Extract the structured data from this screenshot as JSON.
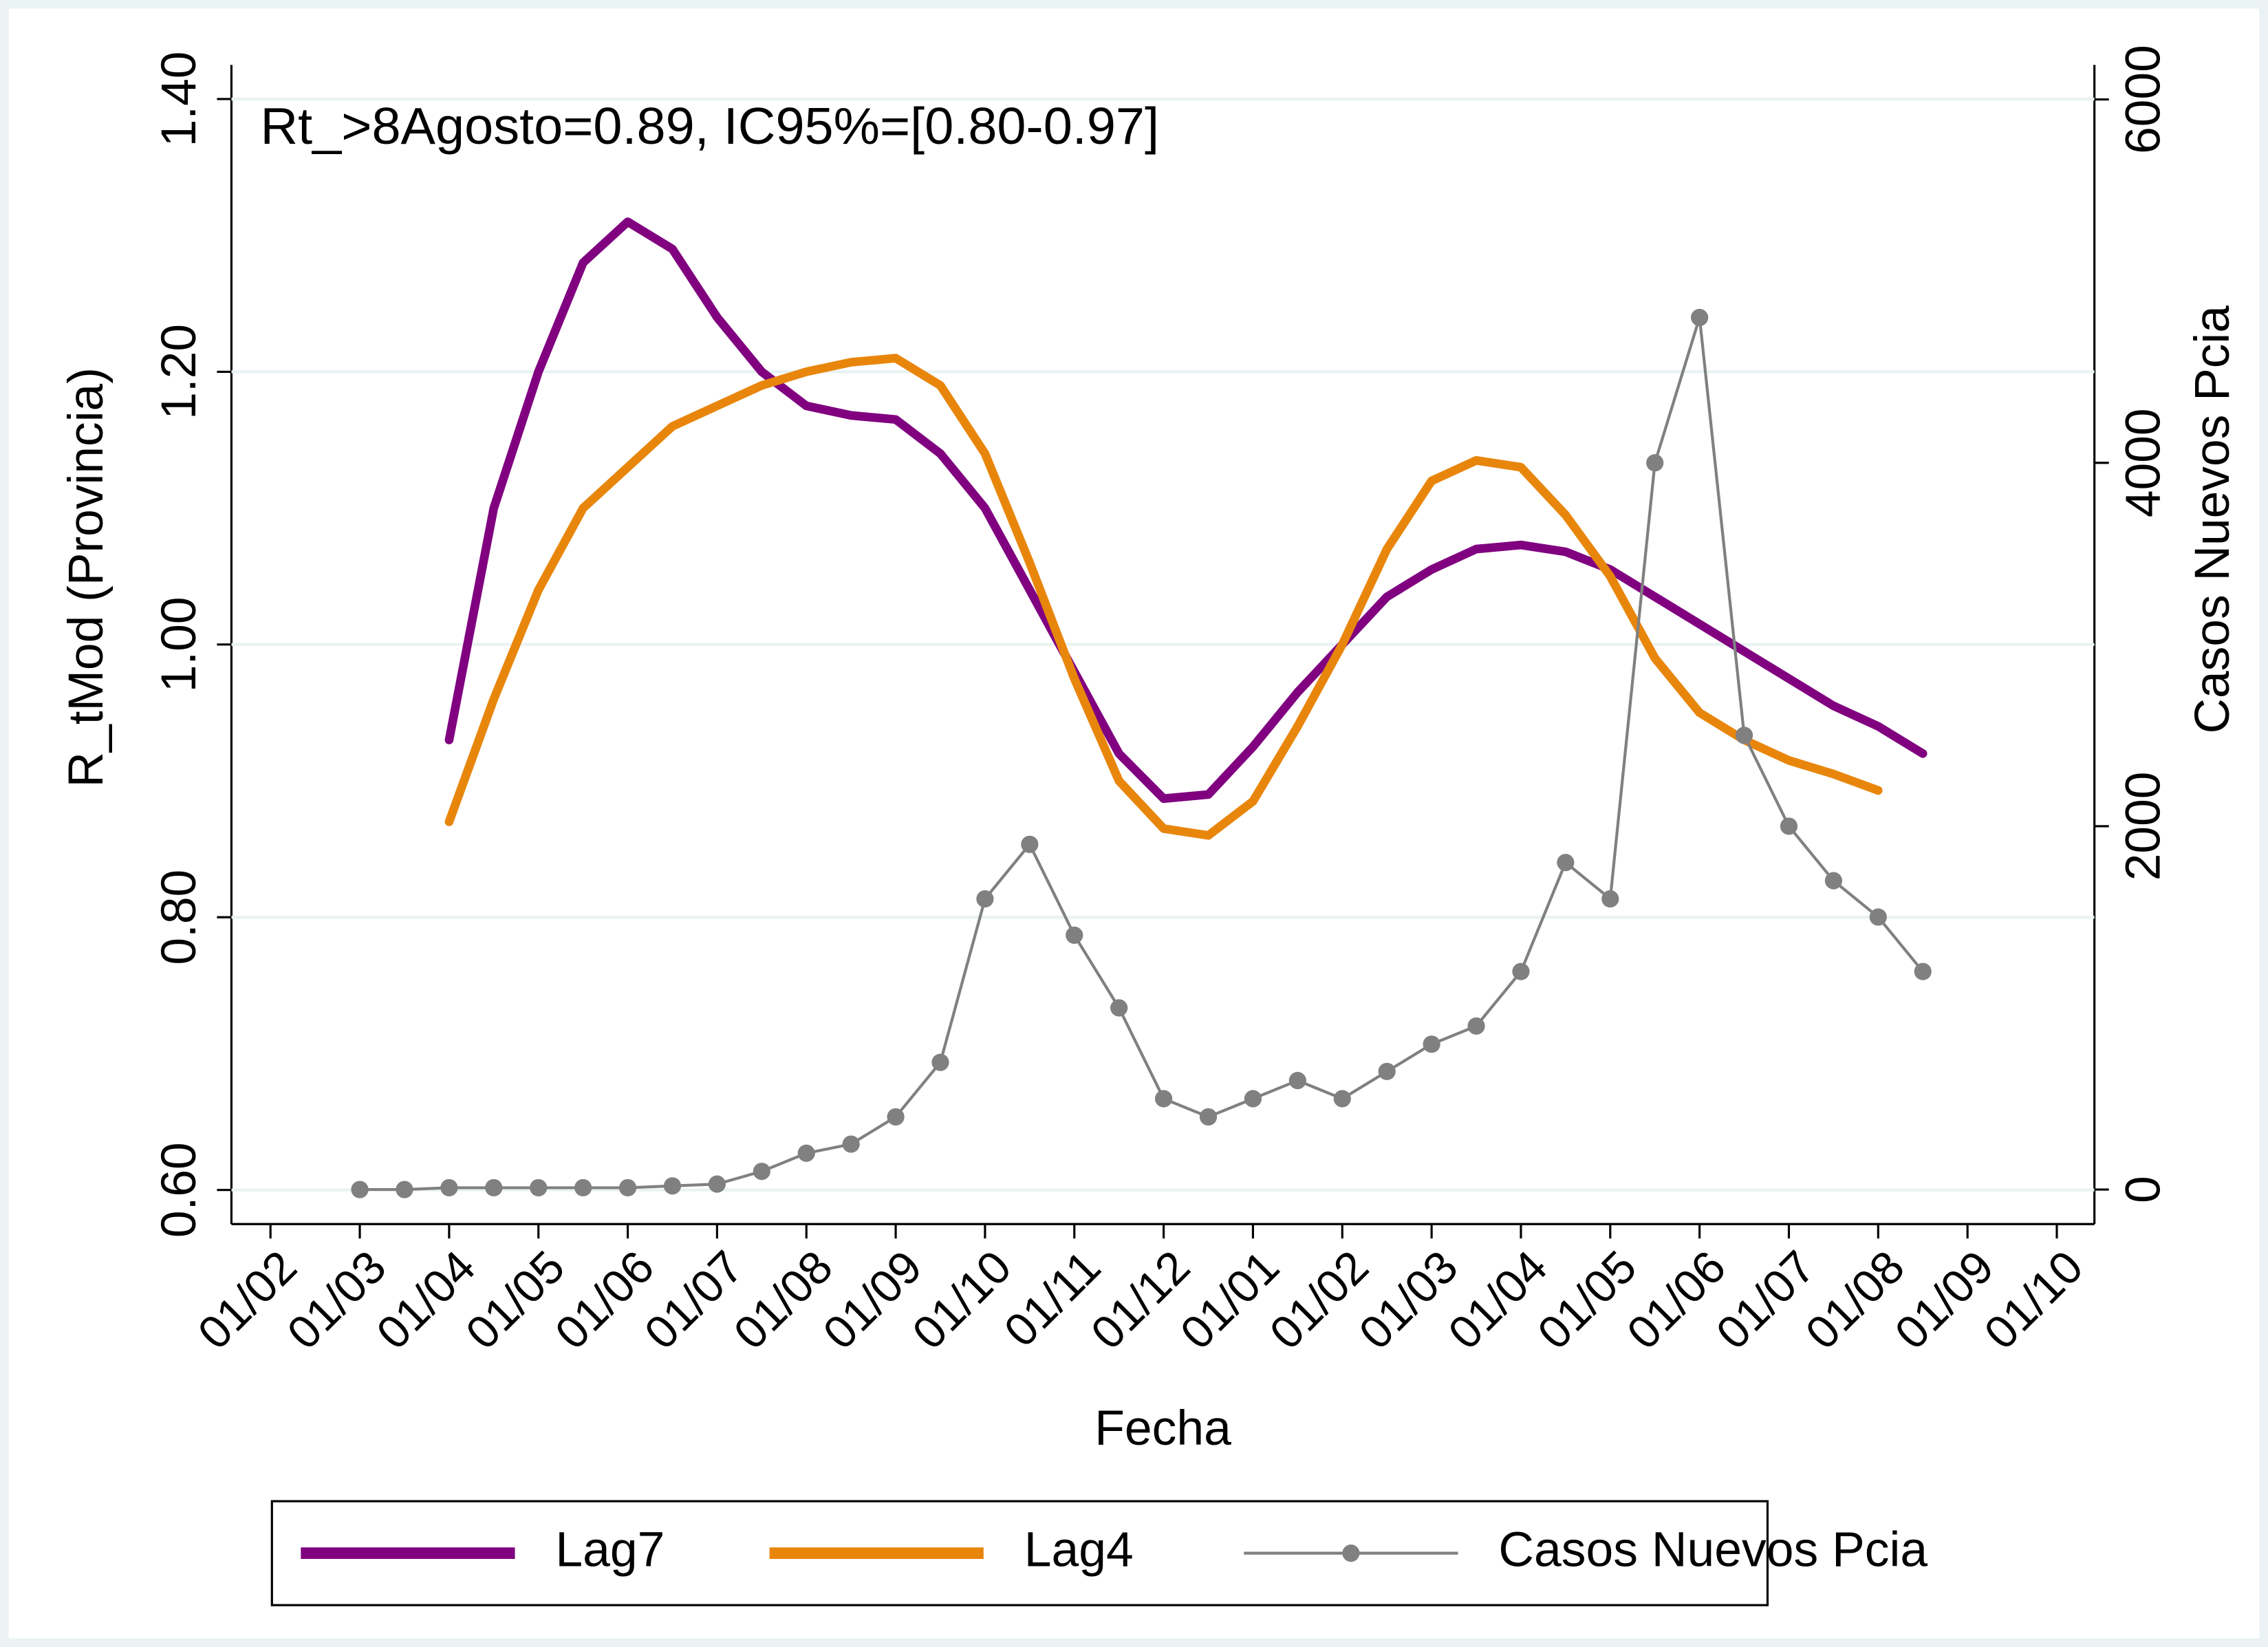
{
  "chart_data": {
    "type": "line",
    "annotation": "Rt_>8Agosto=0.89, IC95%=[0.80-0.97]",
    "x_label": "Fecha",
    "y_label": "R_tMod (Provincia)",
    "y2_label": "Casos Nuevos Pcia",
    "categories": [
      "01/02",
      null,
      "01/03",
      null,
      "01/04",
      null,
      "01/05",
      null,
      "01/06",
      null,
      "01/07",
      null,
      "01/08",
      null,
      "01/09",
      null,
      "01/10",
      null,
      "01/11",
      null,
      "01/12",
      null,
      "01/01",
      null,
      "01/02",
      null,
      "01/03",
      null,
      "01/04",
      null,
      "01/05",
      null,
      "01/06",
      null,
      "01/07",
      null,
      "01/08",
      null,
      "01/09",
      null,
      "01/10"
    ],
    "ylim": [
      0.575,
      1.425
    ],
    "yticks": [
      {
        "value": 0.6,
        "label": "0.60"
      },
      {
        "value": 0.8,
        "label": "0.80"
      },
      {
        "value": 1.0,
        "label": "1.00"
      },
      {
        "value": 1.2,
        "label": "1.20"
      },
      {
        "value": 1.4,
        "label": "1.40"
      }
    ],
    "y2lim": [
      -190,
      6190
    ],
    "y2ticks": [
      0,
      2000,
      4000,
      6000
    ],
    "grid": true,
    "legend": "bottom",
    "series": [
      {
        "name": "Lag7",
        "color": "#800080",
        "values": [
          null,
          null,
          null,
          null,
          0.93,
          1.1,
          1.2,
          1.28,
          1.31,
          1.29,
          1.24,
          1.2,
          1.175,
          1.168,
          1.165,
          1.14,
          1.1,
          1.04,
          0.98,
          0.92,
          0.887,
          0.89,
          0.925,
          0.965,
          1.0,
          1.035,
          1.055,
          1.07,
          1.073,
          1.068,
          1.055,
          1.035,
          1.015,
          0.995,
          0.975,
          0.955,
          0.94,
          0.92,
          null,
          null,
          null
        ]
      },
      {
        "name": "Lag4",
        "color": "#e8860c",
        "values": [
          null,
          null,
          null,
          null,
          0.87,
          0.96,
          1.04,
          1.1,
          1.13,
          1.16,
          1.175,
          1.19,
          1.2,
          1.207,
          1.21,
          1.19,
          1.14,
          1.06,
          0.975,
          0.9,
          0.865,
          0.86,
          0.885,
          0.94,
          1.0,
          1.07,
          1.12,
          1.135,
          1.13,
          1.095,
          1.05,
          0.99,
          0.95,
          0.93,
          0.915,
          0.905,
          0.893,
          null,
          null,
          null,
          null
        ]
      },
      {
        "name": "Casos Nuevos Pcia",
        "color": "#808080",
        "axis": "y2",
        "values": [
          null,
          null,
          0,
          0,
          10,
          10,
          10,
          10,
          10,
          20,
          30,
          100,
          200,
          250,
          400,
          700,
          1600,
          1900,
          1400,
          1000,
          500,
          400,
          500,
          600,
          500,
          650,
          800,
          900,
          1200,
          1800,
          1600,
          4000,
          4800,
          2500,
          2000,
          1700,
          1500,
          1200,
          null,
          null,
          null
        ]
      }
    ]
  }
}
